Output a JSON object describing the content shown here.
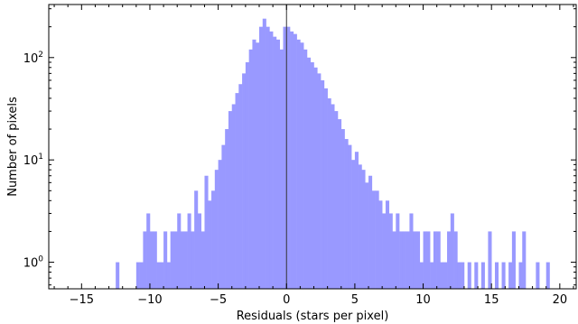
{
  "chart_data": {
    "type": "bar",
    "title": "",
    "xlabel": "Residuals (stars per pixel)",
    "ylabel": "Number of pixels",
    "xlim": [
      -17.4,
      21.2
    ],
    "ylim": [
      0.55,
      330
    ],
    "yscale": "log",
    "bar_width": 0.25,
    "bar_color": "#9999ff",
    "grid": false,
    "legend": "none",
    "vline_x": 0,
    "xticks": [
      {
        "value": -15,
        "label": "−15"
      },
      {
        "value": -10,
        "label": "−10"
      },
      {
        "value": -5,
        "label": "−5"
      },
      {
        "value": 0,
        "label": "0"
      },
      {
        "value": 5,
        "label": "5"
      },
      {
        "value": 10,
        "label": "10"
      },
      {
        "value": 15,
        "label": "15"
      },
      {
        "value": 20,
        "label": "20"
      }
    ],
    "yticks": [
      {
        "value": 1,
        "base": "10",
        "exp": "0"
      },
      {
        "value": 10,
        "base": "10",
        "exp": "1"
      },
      {
        "value": 100,
        "base": "10",
        "exp": "2"
      }
    ],
    "x": [
      -12.375,
      -10.875,
      -10.625,
      -10.375,
      -10.125,
      -9.875,
      -9.625,
      -9.375,
      -9.125,
      -8.875,
      -8.625,
      -8.375,
      -8.125,
      -7.875,
      -7.625,
      -7.375,
      -7.125,
      -6.875,
      -6.625,
      -6.375,
      -6.125,
      -5.875,
      -5.625,
      -5.375,
      -5.125,
      -4.875,
      -4.625,
      -4.375,
      -4.125,
      -3.875,
      -3.625,
      -3.375,
      -3.125,
      -2.875,
      -2.625,
      -2.375,
      -2.125,
      -1.875,
      -1.625,
      -1.375,
      -1.125,
      -0.875,
      -0.625,
      -0.375,
      -0.125,
      0.125,
      0.375,
      0.625,
      0.875,
      1.125,
      1.375,
      1.625,
      1.875,
      2.125,
      2.375,
      2.625,
      2.875,
      3.125,
      3.375,
      3.625,
      3.875,
      4.125,
      4.375,
      4.625,
      4.875,
      5.125,
      5.375,
      5.625,
      5.875,
      6.125,
      6.375,
      6.625,
      6.875,
      7.125,
      7.375,
      7.625,
      7.875,
      8.125,
      8.375,
      8.625,
      8.875,
      9.125,
      9.375,
      9.625,
      9.875,
      10.125,
      10.375,
      10.625,
      10.875,
      11.125,
      11.375,
      11.625,
      11.875,
      12.125,
      12.375,
      12.625,
      12.875,
      13.375,
      13.875,
      14.375,
      14.875,
      15.375,
      15.875,
      16.375,
      16.625,
      17.125,
      17.375,
      18.375,
      19.125
    ],
    "values": [
      1,
      1,
      1,
      2,
      3,
      2,
      2,
      1,
      1,
      2,
      1,
      2,
      2,
      3,
      2,
      2,
      3,
      2,
      5,
      3,
      2,
      7,
      4,
      5,
      8,
      10,
      14,
      20,
      30,
      35,
      45,
      55,
      70,
      90,
      120,
      150,
      140,
      200,
      240,
      200,
      180,
      160,
      150,
      120,
      200,
      200,
      180,
      170,
      150,
      140,
      120,
      100,
      90,
      80,
      70,
      60,
      50,
      40,
      35,
      30,
      25,
      20,
      16,
      14,
      10,
      12,
      9,
      8,
      6,
      7,
      5,
      5,
      4,
      3,
      4,
      3,
      2,
      3,
      2,
      2,
      2,
      3,
      2,
      2,
      1,
      2,
      2,
      1,
      2,
      2,
      1,
      1,
      2,
      3,
      2,
      1,
      1,
      1,
      1,
      1,
      2,
      1,
      1,
      1,
      2,
      1,
      2,
      1,
      1
    ]
  }
}
